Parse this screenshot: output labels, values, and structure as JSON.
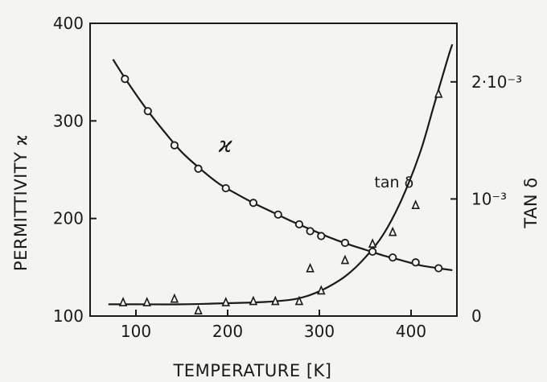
{
  "chart_data": {
    "type": "scatter",
    "xlabel": "TEMPERATURE [K]",
    "ylabel_left": "PERMITTIVITY ϰ",
    "ylabel_right": "TAN δ",
    "xlim": [
      50,
      450
    ],
    "ylim_left": [
      100,
      400
    ],
    "ylim_right": [
      0,
      0.0025
    ],
    "x_ticks": [
      {
        "value": 100,
        "label": "100"
      },
      {
        "value": 200,
        "label": "200"
      },
      {
        "value": 300,
        "label": "300"
      },
      {
        "value": 400,
        "label": "400"
      }
    ],
    "y_left_ticks": [
      {
        "value": 100,
        "label": "100"
      },
      {
        "value": 200,
        "label": "200"
      },
      {
        "value": 300,
        "label": "300"
      },
      {
        "value": 400,
        "label": "400"
      }
    ],
    "y_right_ticks": [
      {
        "value": 0,
        "label": "0"
      },
      {
        "value": 0.001,
        "label": "10⁻³"
      },
      {
        "value": 0.002,
        "label": "2·10⁻³"
      }
    ],
    "grid": false,
    "legend": "none",
    "series": [
      {
        "name": "ϰ",
        "axis": "left",
        "marker": "circle",
        "points": [
          {
            "x": 88,
            "y": 343
          },
          {
            "x": 113,
            "y": 310
          },
          {
            "x": 142,
            "y": 275
          },
          {
            "x": 168,
            "y": 251
          },
          {
            "x": 198,
            "y": 231
          },
          {
            "x": 228,
            "y": 216
          },
          {
            "x": 255,
            "y": 204
          },
          {
            "x": 278,
            "y": 194
          },
          {
            "x": 290,
            "y": 187
          },
          {
            "x": 302,
            "y": 182
          },
          {
            "x": 328,
            "y": 175
          },
          {
            "x": 358,
            "y": 166
          },
          {
            "x": 380,
            "y": 160
          },
          {
            "x": 405,
            "y": 155
          },
          {
            "x": 430,
            "y": 149
          }
        ],
        "curve": [
          {
            "x": 75,
            "y": 363
          },
          {
            "x": 90,
            "y": 341
          },
          {
            "x": 110,
            "y": 314
          },
          {
            "x": 130,
            "y": 290
          },
          {
            "x": 150,
            "y": 268
          },
          {
            "x": 170,
            "y": 251
          },
          {
            "x": 190,
            "y": 236
          },
          {
            "x": 210,
            "y": 225
          },
          {
            "x": 230,
            "y": 215
          },
          {
            "x": 250,
            "y": 206
          },
          {
            "x": 270,
            "y": 197
          },
          {
            "x": 290,
            "y": 189
          },
          {
            "x": 310,
            "y": 181
          },
          {
            "x": 330,
            "y": 174
          },
          {
            "x": 350,
            "y": 168
          },
          {
            "x": 370,
            "y": 162
          },
          {
            "x": 390,
            "y": 157
          },
          {
            "x": 410,
            "y": 152
          },
          {
            "x": 430,
            "y": 149
          },
          {
            "x": 445,
            "y": 147
          }
        ]
      },
      {
        "name": "tan δ",
        "axis": "right",
        "marker": "triangle",
        "points": [
          {
            "x": 86,
            "y": 0.00012
          },
          {
            "x": 112,
            "y": 0.00012
          },
          {
            "x": 142,
            "y": 0.00015
          },
          {
            "x": 168,
            "y": 5e-05
          },
          {
            "x": 198,
            "y": 0.00012
          },
          {
            "x": 228,
            "y": 0.00013
          },
          {
            "x": 252,
            "y": 0.00013
          },
          {
            "x": 278,
            "y": 0.00013
          },
          {
            "x": 302,
            "y": 0.00022
          },
          {
            "x": 290,
            "y": 0.00041
          },
          {
            "x": 328,
            "y": 0.00048
          },
          {
            "x": 358,
            "y": 0.00062
          },
          {
            "x": 380,
            "y": 0.00072
          },
          {
            "x": 405,
            "y": 0.00095
          },
          {
            "x": 430,
            "y": 0.0019
          }
        ],
        "curve": [
          {
            "x": 70,
            "y": 0.0001
          },
          {
            "x": 100,
            "y": 0.0001
          },
          {
            "x": 150,
            "y": 0.0001
          },
          {
            "x": 200,
            "y": 0.00011
          },
          {
            "x": 240,
            "y": 0.00012
          },
          {
            "x": 270,
            "y": 0.00014
          },
          {
            "x": 290,
            "y": 0.00018
          },
          {
            "x": 310,
            "y": 0.00025
          },
          {
            "x": 330,
            "y": 0.00035
          },
          {
            "x": 350,
            "y": 0.0005
          },
          {
            "x": 370,
            "y": 0.0007
          },
          {
            "x": 390,
            "y": 0.001
          },
          {
            "x": 410,
            "y": 0.0014
          },
          {
            "x": 425,
            "y": 0.0018
          },
          {
            "x": 440,
            "y": 0.0022
          },
          {
            "x": 445,
            "y": 0.00232
          }
        ]
      }
    ],
    "annotations": [
      {
        "text": "ϰ",
        "x": 190,
        "y": 268,
        "axis": "left"
      },
      {
        "text": "tan δ",
        "x": 360,
        "y": 0.0011,
        "axis": "right"
      }
    ]
  }
}
